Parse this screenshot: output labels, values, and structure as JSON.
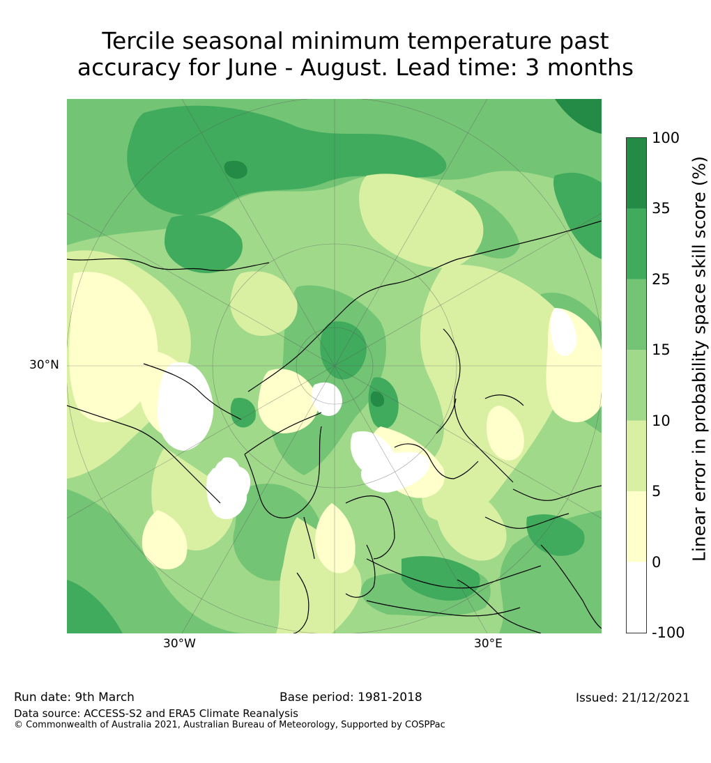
{
  "title": {
    "line1": "Tercile seasonal minimum temperature past",
    "line2": "accuracy for June - August. Lead time: 3 months"
  },
  "map": {
    "projection": "north-polar-stereographic",
    "lat_label": "30°N",
    "lon_label_west": "30°W",
    "lon_label_east": "30°E",
    "colors": {
      "ocean_base": "#bfe3a3",
      "coast": "#000000",
      "grid": "#555555"
    }
  },
  "colorbar": {
    "label": "Linear error in probability space skill score (%)",
    "ticks": [
      "100",
      "35",
      "25",
      "15",
      "10",
      "5",
      "0",
      "-100"
    ],
    "bins": [
      {
        "range": "35 to 100",
        "color": "#238b45"
      },
      {
        "range": "25 to 35",
        "color": "#41ab5d"
      },
      {
        "range": "15 to 25",
        "color": "#74c476"
      },
      {
        "range": "10 to 15",
        "color": "#a1d98b"
      },
      {
        "range": "5 to 10",
        "color": "#d9f0a3"
      },
      {
        "range": "0 to 5",
        "color": "#ffffcc"
      },
      {
        "range": "-100 to 0",
        "color": "#ffffff"
      }
    ]
  },
  "footer": {
    "run_date": "Run date: 9th March",
    "base_period": "Base period: 1981-2018",
    "issued": "Issued: 21/12/2021",
    "data_source": "Data source: ACCESS-S2 and ERA5 Climate Reanalysis",
    "copyright": "© Commonwealth of Australia 2021, Australian Bureau of Meteorology, Supported by COSPPac"
  }
}
